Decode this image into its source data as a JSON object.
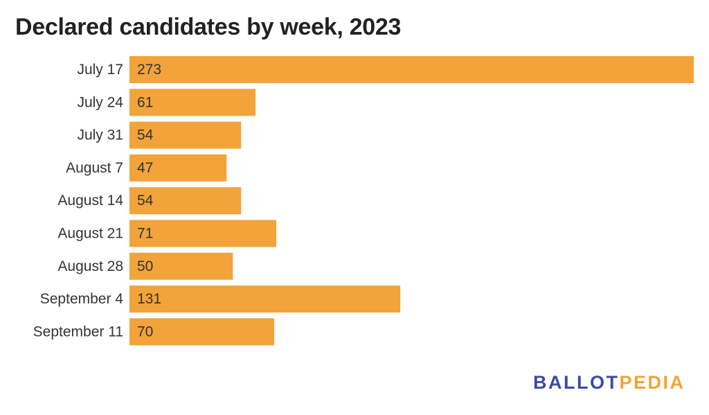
{
  "brand": {
    "part1": "BALLOT",
    "part2": "PEDIA",
    "colors": {
      "part1": "#3b4ba1",
      "part2": "#f0a339"
    }
  },
  "chart_data": {
    "type": "bar",
    "orientation": "horizontal",
    "title": "Declared candidates by week, 2023",
    "categories": [
      "July 17",
      "July 24",
      "July 31",
      "August 7",
      "August 14",
      "August 21",
      "August 28",
      "September 4",
      "September 11"
    ],
    "values": [
      273,
      61,
      54,
      47,
      54,
      71,
      50,
      131,
      70
    ],
    "xlim": [
      0,
      273
    ],
    "grid": false,
    "bar_color": "#f2a33a",
    "data_labels": "inside-start"
  }
}
